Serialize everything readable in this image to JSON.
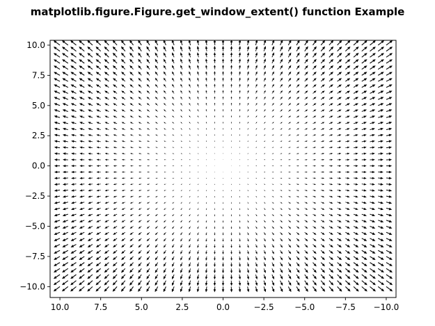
{
  "figure": {
    "title": "matplotlib.figure.Figure.get_window_extent() function Example"
  },
  "chart_data": {
    "type": "quiver",
    "title": "matplotlib.figure.Figure.get_window_extent() function Example",
    "xlabel": "",
    "ylabel": "",
    "xlim": [
      10.6,
      -10.6
    ],
    "ylim": [
      -10.9,
      10.4
    ],
    "x_inverted": true,
    "grid": false,
    "field": {
      "x_start": -10,
      "x_stop": 10,
      "x_step": 0.5,
      "y_start": -10,
      "y_stop": 10,
      "y_step": 0.5,
      "u": "x",
      "v": "y",
      "color": "#000000"
    },
    "xticks": [
      {
        "value": 10.0,
        "label": "10.0"
      },
      {
        "value": 7.5,
        "label": "7.5"
      },
      {
        "value": 5.0,
        "label": "5.0"
      },
      {
        "value": 2.5,
        "label": "2.5"
      },
      {
        "value": 0.0,
        "label": "0.0"
      },
      {
        "value": -2.5,
        "label": "−2.5"
      },
      {
        "value": -5.0,
        "label": "−5.0"
      },
      {
        "value": -7.5,
        "label": "−7.5"
      },
      {
        "value": -10.0,
        "label": "−10.0"
      }
    ],
    "yticks": [
      {
        "value": 10.0,
        "label": "10.0"
      },
      {
        "value": 7.5,
        "label": "7.5"
      },
      {
        "value": 5.0,
        "label": "5.0"
      },
      {
        "value": 2.5,
        "label": "2.5"
      },
      {
        "value": 0.0,
        "label": "0.0"
      },
      {
        "value": -2.5,
        "label": "−2.5"
      },
      {
        "value": -5.0,
        "label": "−5.0"
      },
      {
        "value": -7.5,
        "label": "−7.5"
      },
      {
        "value": -10.0,
        "label": "−10.0"
      }
    ]
  }
}
